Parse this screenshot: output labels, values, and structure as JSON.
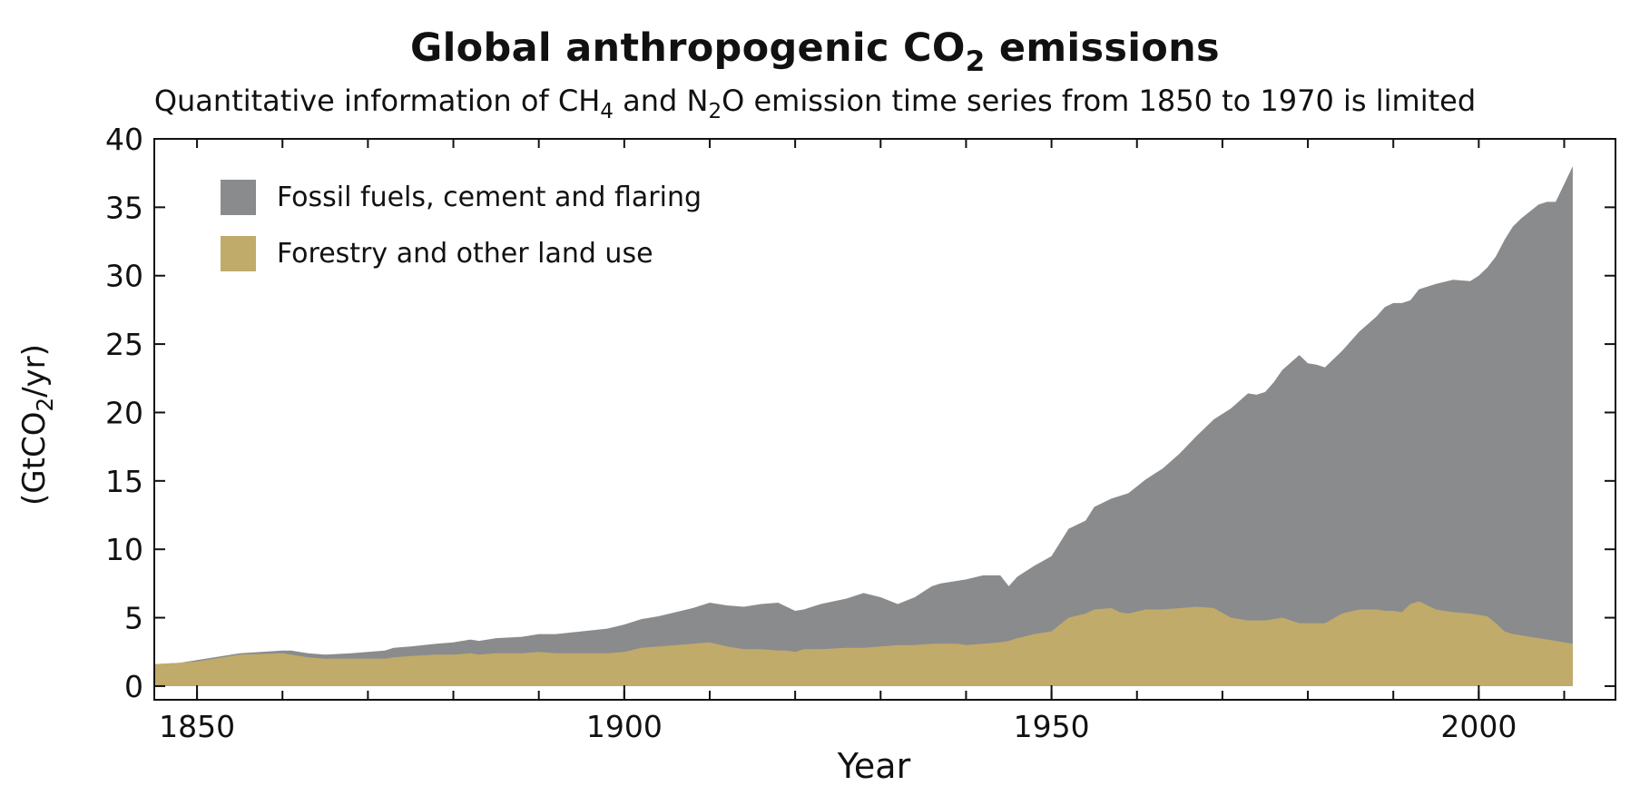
{
  "chart_data": {
    "type": "area",
    "stacked": true,
    "title": "Global anthropogenic CO",
    "title_subscript": "2",
    "title_suffix": " emissions",
    "subtitle_parts": [
      {
        "text": "Quantitative information of CH",
        "sub": false
      },
      {
        "text": "4",
        "sub": true
      },
      {
        "text": " and N",
        "sub": false
      },
      {
        "text": "2",
        "sub": true
      },
      {
        "text": "O emission time series from 1850 to 1970 is limited",
        "sub": false
      }
    ],
    "xlabel": "Year",
    "ylabel_prefix": "(GtCO",
    "ylabel_sub": "2",
    "ylabel_suffix": "/yr)",
    "xlim": [
      1845,
      2016
    ],
    "ylim": [
      -1,
      40
    ],
    "xticks": [
      1850,
      1900,
      1950,
      2000
    ],
    "yticks": [
      0,
      5,
      10,
      15,
      20,
      25,
      30,
      35,
      40
    ],
    "grid": false,
    "legend_position": "top-left",
    "colors": {
      "fossil": "#8a8b8d",
      "forestry": "#c1ab6a"
    },
    "x": [
      1845,
      1848,
      1850,
      1852,
      1855,
      1860,
      1861,
      1863,
      1865,
      1868,
      1870,
      1872,
      1873,
      1875,
      1878,
      1880,
      1882,
      1883,
      1885,
      1888,
      1890,
      1892,
      1895,
      1898,
      1900,
      1902,
      1904,
      1906,
      1908,
      1910,
      1912,
      1914,
      1916,
      1918,
      1919,
      1920,
      1921,
      1923,
      1926,
      1928,
      1930,
      1932,
      1934,
      1936,
      1937,
      1939,
      1940,
      1942,
      1944,
      1945,
      1946,
      1948,
      1950,
      1952,
      1954,
      1955,
      1957,
      1958,
      1959,
      1961,
      1963,
      1965,
      1967,
      1969,
      1971,
      1973,
      1974,
      1975,
      1976,
      1977,
      1979,
      1980,
      1981,
      1982,
      1984,
      1986,
      1988,
      1989,
      1990,
      1991,
      1992,
      1993,
      1995,
      1997,
      1999,
      2000,
      2001,
      2002,
      2003,
      2004,
      2005,
      2006,
      2007,
      2008,
      2009,
      2010,
      2011
    ],
    "series": [
      {
        "name": "Fossil fuels, cement and flaring",
        "values": [
          0.0,
          0.0,
          0.1,
          0.1,
          0.1,
          0.2,
          0.3,
          0.3,
          0.3,
          0.4,
          0.5,
          0.6,
          0.7,
          0.7,
          0.8,
          0.9,
          1.0,
          1.0,
          1.1,
          1.2,
          1.3,
          1.4,
          1.6,
          1.8,
          2.0,
          2.1,
          2.2,
          2.4,
          2.6,
          2.9,
          3.0,
          3.1,
          3.3,
          3.5,
          3.2,
          3.0,
          2.9,
          3.3,
          3.6,
          4.0,
          3.6,
          3.0,
          3.5,
          4.2,
          4.4,
          4.6,
          4.8,
          5.0,
          4.9,
          4.0,
          4.5,
          5.0,
          5.5,
          6.5,
          6.8,
          7.5,
          8.0,
          8.5,
          8.8,
          9.5,
          10.3,
          11.3,
          12.5,
          13.8,
          15.3,
          16.6,
          16.5,
          16.7,
          17.3,
          18.1,
          19.6,
          19.0,
          18.9,
          18.7,
          19.2,
          20.3,
          21.4,
          22.2,
          22.5,
          22.6,
          22.2,
          22.8,
          23.8,
          24.3,
          24.3,
          24.8,
          25.5,
          26.8,
          28.6,
          29.8,
          30.5,
          31.1,
          31.7,
          32.0,
          32.1,
          33.5,
          34.9
        ]
      },
      {
        "name": "Forestry and other land use",
        "values": [
          1.6,
          1.7,
          1.8,
          2.0,
          2.3,
          2.4,
          2.3,
          2.1,
          2.0,
          2.0,
          2.0,
          2.0,
          2.1,
          2.2,
          2.3,
          2.3,
          2.4,
          2.3,
          2.4,
          2.4,
          2.5,
          2.4,
          2.4,
          2.4,
          2.5,
          2.8,
          2.9,
          3.0,
          3.1,
          3.2,
          2.9,
          2.7,
          2.7,
          2.6,
          2.6,
          2.5,
          2.7,
          2.7,
          2.8,
          2.8,
          2.9,
          3.0,
          3.0,
          3.1,
          3.1,
          3.1,
          3.0,
          3.1,
          3.2,
          3.3,
          3.5,
          3.8,
          4.0,
          5.0,
          5.3,
          5.6,
          5.7,
          5.4,
          5.3,
          5.6,
          5.6,
          5.7,
          5.8,
          5.7,
          5.0,
          4.8,
          4.8,
          4.8,
          4.9,
          5.0,
          4.6,
          4.6,
          4.6,
          4.6,
          5.3,
          5.6,
          5.6,
          5.5,
          5.5,
          5.4,
          6.0,
          6.2,
          5.6,
          5.4,
          5.3,
          5.2,
          5.1,
          4.6,
          4.0,
          3.8,
          3.7,
          3.6,
          3.5,
          3.4,
          3.3,
          3.2,
          3.1
        ]
      }
    ]
  }
}
